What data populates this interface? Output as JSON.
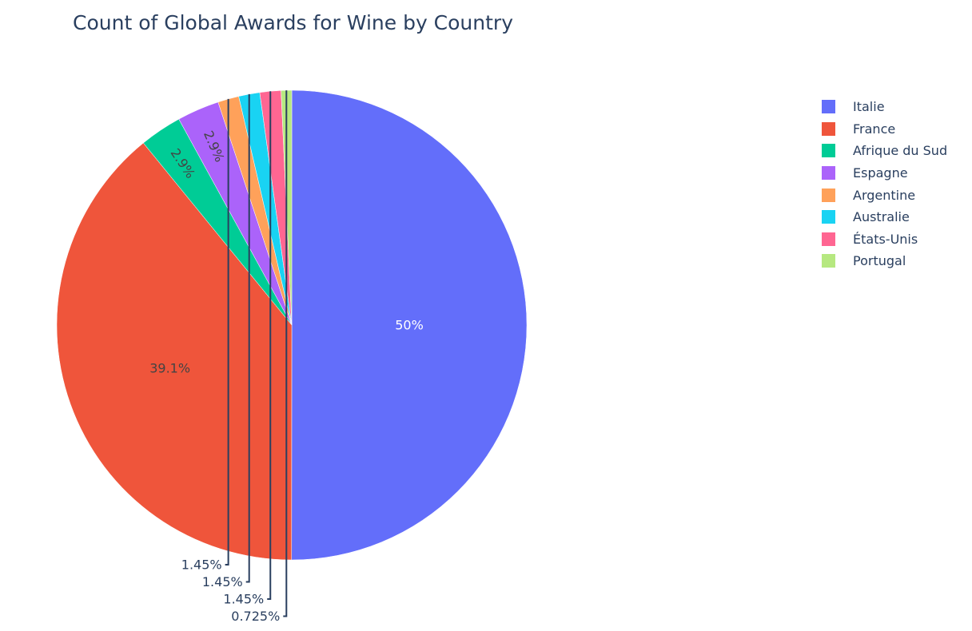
{
  "chart_data": {
    "type": "pie",
    "title": "Count of Global Awards for Wine by Country",
    "slices": [
      {
        "label": "Italie",
        "value": 50,
        "display": "50%",
        "color": "#636efa"
      },
      {
        "label": "France",
        "value": 39.1,
        "display": "39.1%",
        "color": "#ef553b"
      },
      {
        "label": "Afrique du Sud",
        "value": 2.9,
        "display": "2.9%",
        "color": "#00cc96"
      },
      {
        "label": "Espagne",
        "value": 2.9,
        "display": "2.9%",
        "color": "#ab63fa"
      },
      {
        "label": "Argentine",
        "value": 1.45,
        "display": "1.45%",
        "color": "#ffa15a"
      },
      {
        "label": "Australie",
        "value": 1.45,
        "display": "1.45%",
        "color": "#19d3f3"
      },
      {
        "label": "États-Unis",
        "value": 1.45,
        "display": "1.45%",
        "color": "#ff6692"
      },
      {
        "label": "Portugal",
        "value": 0.725,
        "display": "0.725%",
        "color": "#b6e880"
      }
    ],
    "legend_position": "top-right",
    "direction": "clockwise",
    "start": "top"
  }
}
